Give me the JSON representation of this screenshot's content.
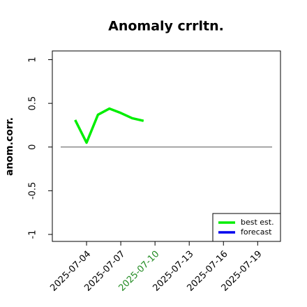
{
  "chart_data": {
    "type": "line",
    "title": "Anomaly crrltn.",
    "ylabel": "anom.corr.",
    "x": [
      "2025-07-03",
      "2025-07-04",
      "2025-07-05",
      "2025-07-06",
      "2025-07-07",
      "2025-07-08",
      "2025-07-09"
    ],
    "series": [
      {
        "name": "best est.",
        "color": "#00ee00",
        "values": [
          0.31,
          0.05,
          0.37,
          0.44,
          0.39,
          0.33,
          0.3
        ]
      },
      {
        "name": "forecast",
        "color": "#0000ee",
        "values": [
          null,
          null,
          null,
          null,
          null,
          null,
          null
        ]
      }
    ],
    "hline": 0,
    "xlim": [
      "2025-07-01",
      "2025-07-21"
    ],
    "xticks": [
      "2025-07-04",
      "2025-07-07",
      "2025-07-10",
      "2025-07-13",
      "2025-07-16",
      "2025-07-19"
    ],
    "xtick_colors": [
      "#000000",
      "#000000",
      "#228b22",
      "#000000",
      "#000000",
      "#000000"
    ],
    "ylim": [
      -1.08,
      1.1
    ],
    "yticks": [
      -1.0,
      -0.5,
      0.0,
      0.5,
      1.0
    ],
    "legend": "lower right"
  }
}
